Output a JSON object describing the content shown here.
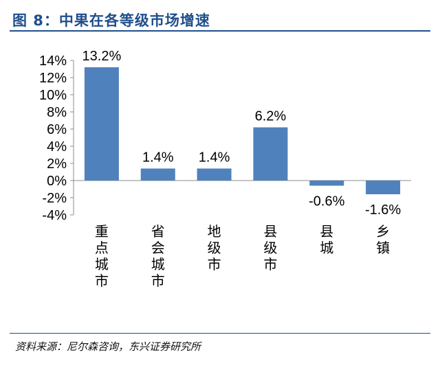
{
  "header": {
    "title": "图 8：中果在各等级市场增速"
  },
  "footer": {
    "source": "资料来源：尼尔森咨询，东兴证券研究所"
  },
  "chart_data": {
    "type": "bar",
    "categories": [
      "重点城市",
      "省会城市",
      "地级市",
      "县级市",
      "县城",
      "乡镇"
    ],
    "values": [
      13.2,
      1.4,
      1.4,
      6.2,
      -0.6,
      -1.6
    ],
    "data_labels": [
      "13.2%",
      "1.4%",
      "1.4%",
      "6.2%",
      "-0.6%",
      "-1.6%"
    ],
    "y_ticks": [
      -4,
      -2,
      0,
      2,
      4,
      6,
      8,
      10,
      12,
      14
    ],
    "y_tick_labels": [
      "-4%",
      "-2%",
      "0%",
      "2%",
      "4%",
      "6%",
      "8%",
      "10%",
      "12%",
      "14%"
    ],
    "ylim": [
      -4,
      14
    ],
    "bar_color": "#4f81bd",
    "grid": false,
    "legend": "none"
  }
}
